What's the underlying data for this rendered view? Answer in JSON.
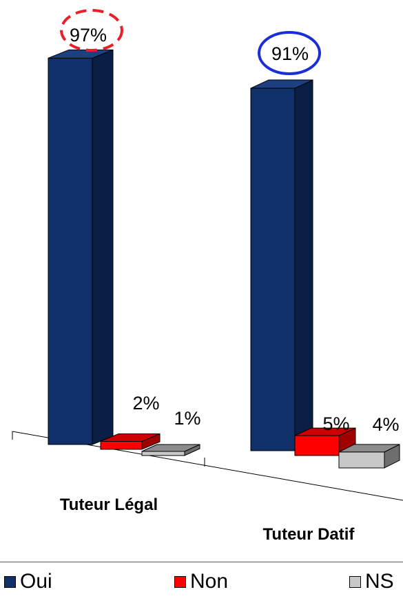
{
  "colors": {
    "oui": "#0f3068",
    "oui_side": "#0a1f45",
    "oui_top": "#1c4080",
    "non": "#ff0000",
    "non_side": "#a00000",
    "non_top": "#cc0000",
    "ns": "#c8c8c8",
    "ns_side": "#6e6e6e",
    "ns_top": "#8c8c8c",
    "highlight_legal": "#e8202a",
    "highlight_datif": "#1a2fd6"
  },
  "chart_data": {
    "type": "bar",
    "categories": [
      "Tuteur Légal",
      "Tuteur Datif"
    ],
    "series": [
      {
        "name": "Oui",
        "values": [
          97,
          91
        ],
        "labels": [
          "97%",
          "91%"
        ]
      },
      {
        "name": "Non",
        "values": [
          2,
          5
        ],
        "labels": [
          "2%",
          "5%"
        ]
      },
      {
        "name": "NS",
        "values": [
          1,
          4
        ],
        "labels": [
          "1%",
          "4%"
        ]
      }
    ],
    "ylim": [
      0,
      100
    ],
    "grid": false,
    "legend_position": "bottom",
    "annotations": [
      {
        "target": "Tuteur Légal / Oui",
        "style": "dashed red ellipse"
      },
      {
        "target": "Tuteur Datif / Oui",
        "style": "solid blue ellipse"
      }
    ]
  },
  "legend": {
    "items": [
      {
        "label": "Oui"
      },
      {
        "label": "Non"
      },
      {
        "label": "NS"
      }
    ]
  }
}
